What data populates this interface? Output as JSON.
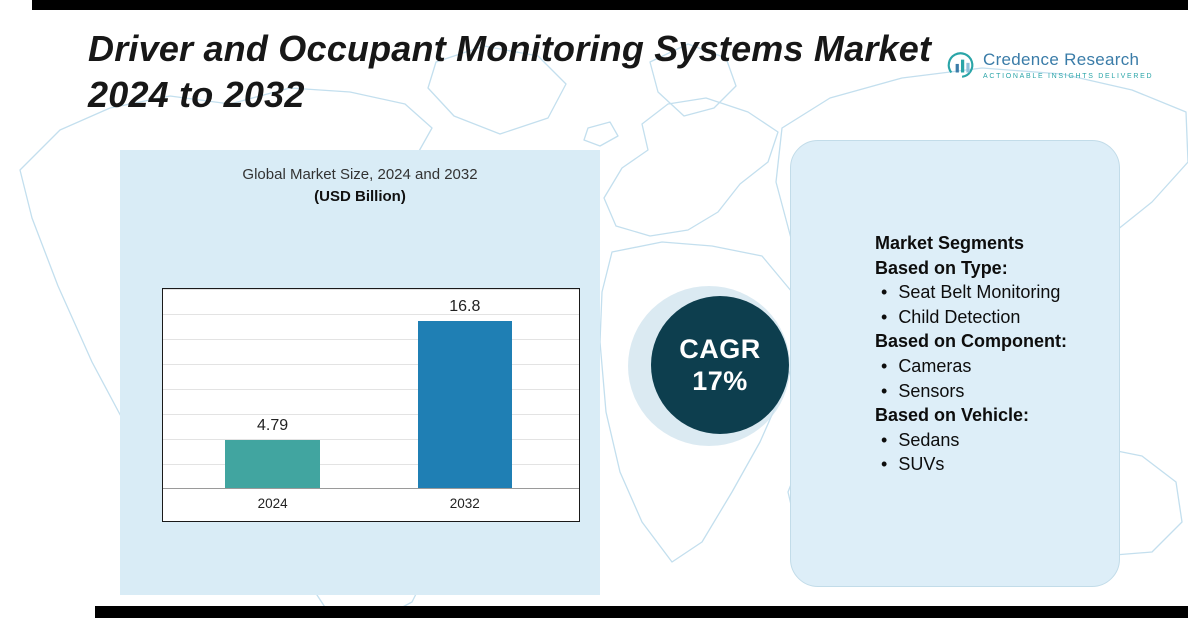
{
  "header": {
    "title_line1": "Driver and Occupant Monitoring Systems Market",
    "title_line2": "2024 to 2032"
  },
  "logo": {
    "name": "Credence Research",
    "tagline": "ACTIONABLE INSIGHTS DELIVERED"
  },
  "chart_data": {
    "type": "bar",
    "title": "Global Market Size, 2024 and 2032",
    "subtitle": "(USD Billion)",
    "categories": [
      "2024",
      "2032"
    ],
    "values": [
      4.79,
      16.8
    ],
    "ylim": [
      0,
      20
    ],
    "grid": true,
    "legend_position": "none",
    "bar_colors": [
      "#41a5a0",
      "#1f7fb4"
    ],
    "xlabel": "",
    "ylabel": ""
  },
  "cagr": {
    "label": "CAGR",
    "value": "17%"
  },
  "segments": {
    "heading": "Market Segments",
    "groups": [
      {
        "label": "Based on Type:",
        "items": [
          "Seat Belt Monitoring",
          "Child Detection"
        ]
      },
      {
        "label": "Based on Component:",
        "items": [
          "Cameras",
          "Sensors"
        ]
      },
      {
        "label": "Based on Vehicle:",
        "items": [
          "Sedans",
          "SUVs"
        ]
      }
    ]
  },
  "colors": {
    "left_panel_bg": "#d9ecf6",
    "right_panel_bg": "#ddeef8",
    "cagr_circle": "#0d3e4e",
    "map_outline": "#c3dfee",
    "logo_blue": "#3a7ca8",
    "logo_teal": "#2aa5a8"
  }
}
